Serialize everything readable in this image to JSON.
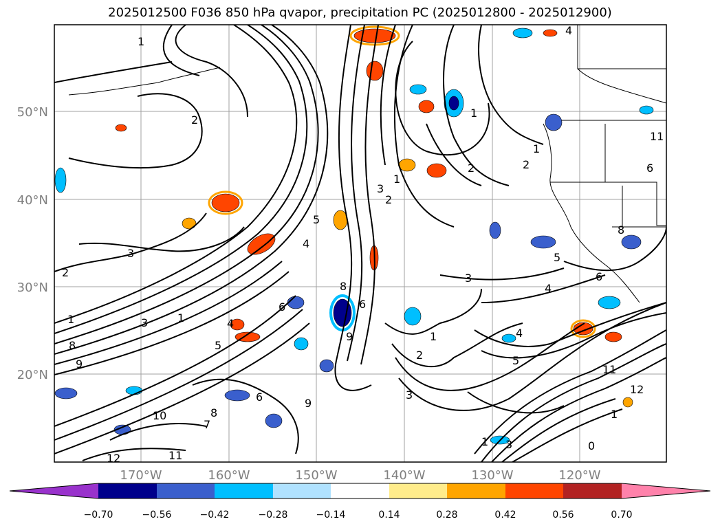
{
  "title": "2025012500 F036 850 hPa qvapor, precipitation PC (2025012800 - 2025012900)",
  "map": {
    "lat_ticks": [
      "50°N",
      "40°N",
      "30°N",
      "20°N"
    ],
    "lon_ticks": [
      "170°W",
      "160°W",
      "150°W",
      "140°W",
      "130°W",
      "120°W"
    ],
    "tick_color": "#808080",
    "contour_labels": [
      "1",
      "2",
      "3",
      "1",
      "2",
      "3",
      "1",
      "8",
      "9",
      "10",
      "12",
      "11",
      "9",
      "8",
      "7",
      "6",
      "5",
      "4",
      "6",
      "5",
      "4",
      "3",
      "2",
      "1",
      "1",
      "2",
      "3",
      "4",
      "5",
      "6",
      "1",
      "2",
      "3",
      "4",
      "5",
      "6",
      "8",
      "9",
      "11",
      "12",
      "1",
      "0",
      "3",
      "1",
      "2",
      "1",
      "4",
      "6",
      "8",
      "11"
    ]
  },
  "colorbar": {
    "ticks": [
      "−0.70",
      "−0.56",
      "−0.42",
      "−0.28",
      "−0.14",
      "0.14",
      "0.28",
      "0.42",
      "0.56",
      "0.70"
    ],
    "colors": [
      "#9932cc",
      "#00008b",
      "#3a5fcd",
      "#00bfff",
      "#b0e2ff",
      "#ffffff",
      "#ffec8b",
      "#ffa500",
      "#ff4500",
      "#b22222",
      "#ff82ab"
    ]
  }
}
